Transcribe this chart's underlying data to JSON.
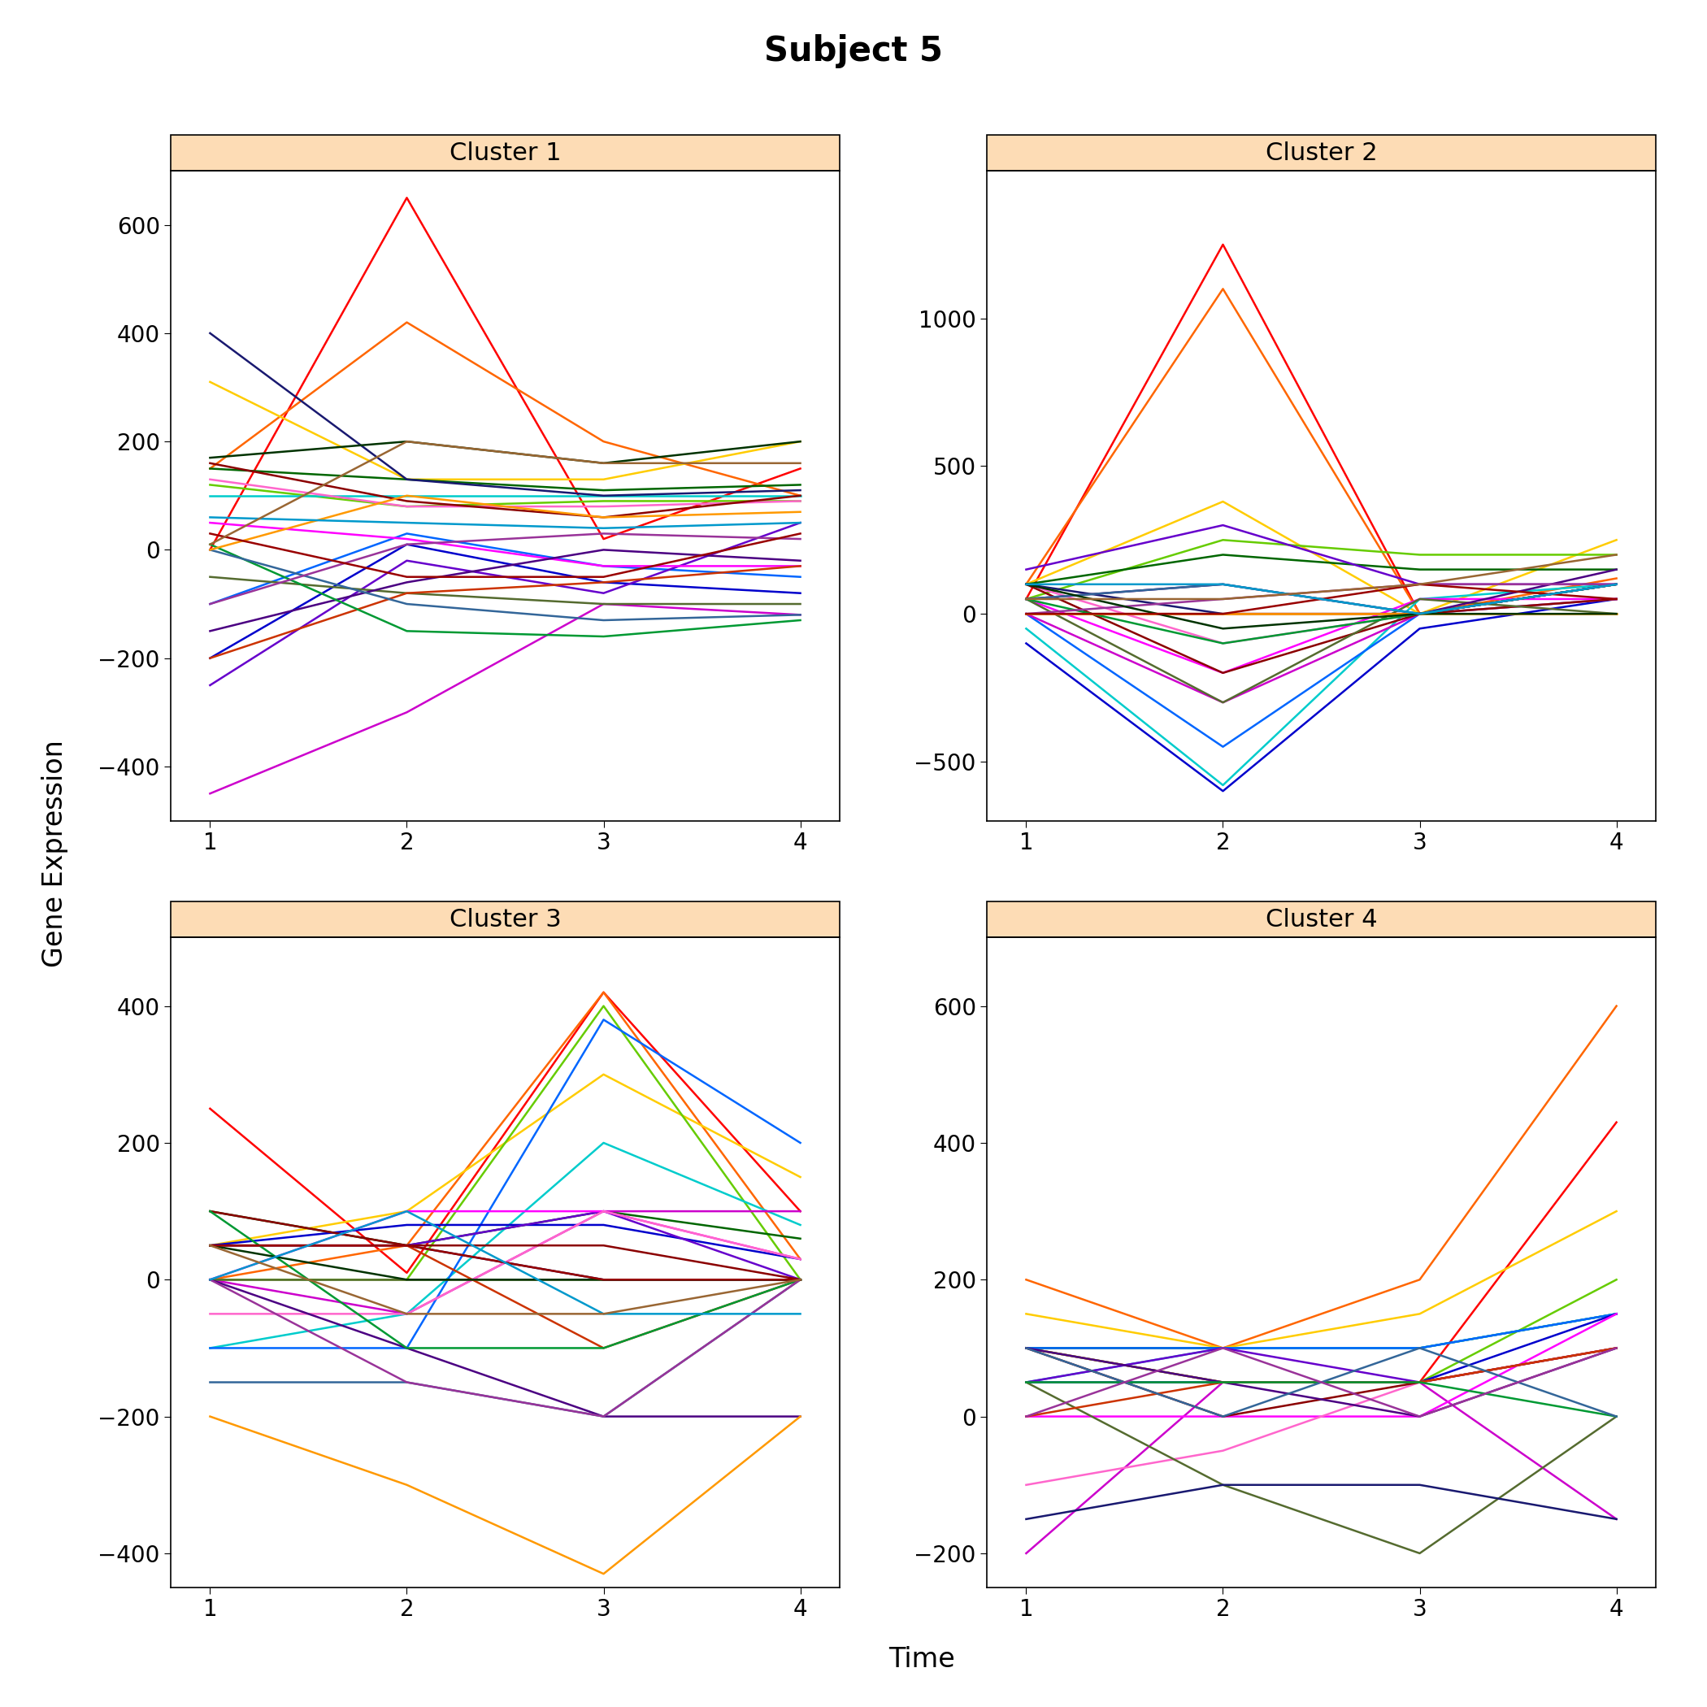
{
  "title": "Subject 5",
  "subplot_titles": [
    "Cluster 1",
    "Cluster 2",
    "Cluster 3",
    "Cluster 4"
  ],
  "xlabel": "Time",
  "ylabel": "Gene Expression",
  "header_color": "#FDDCB5",
  "background_color": "#FFFFFF",
  "ylims": {
    "0": [
      -500,
      700
    ],
    "1": [
      -700,
      1500
    ],
    "2": [
      -450,
      500
    ],
    "3": [
      -250,
      700
    ]
  },
  "yticks": {
    "0": [
      -400,
      -200,
      0,
      200,
      400,
      600
    ],
    "1": [
      -500,
      0,
      500,
      1000
    ],
    "2": [
      -400,
      -200,
      0,
      200,
      400
    ],
    "3": [
      -200,
      0,
      200,
      400,
      600
    ]
  },
  "cluster1_lines": [
    [
      0,
      650,
      20,
      150
    ],
    [
      150,
      420,
      200,
      100
    ],
    [
      310,
      130,
      130,
      200
    ],
    [
      120,
      80,
      90,
      90
    ],
    [
      150,
      130,
      110,
      120
    ],
    [
      100,
      100,
      100,
      100
    ],
    [
      -100,
      30,
      -30,
      -50
    ],
    [
      -200,
      10,
      -60,
      -80
    ],
    [
      -250,
      -20,
      -80,
      50
    ],
    [
      -450,
      -300,
      -100,
      -120
    ],
    [
      50,
      20,
      -30,
      -30
    ],
    [
      130,
      80,
      80,
      90
    ],
    [
      160,
      90,
      60,
      100
    ],
    [
      -50,
      -80,
      -100,
      -100
    ],
    [
      400,
      130,
      100,
      110
    ],
    [
      -150,
      -60,
      0,
      -20
    ],
    [
      -200,
      -80,
      -60,
      -30
    ],
    [
      10,
      -150,
      -160,
      -130
    ],
    [
      0,
      -100,
      -130,
      -120
    ],
    [
      -100,
      10,
      30,
      20
    ],
    [
      0,
      100,
      60,
      70
    ],
    [
      170,
      200,
      160,
      200
    ],
    [
      30,
      -50,
      -50,
      30
    ],
    [
      60,
      50,
      40,
      50
    ],
    [
      10,
      200,
      160,
      160
    ]
  ],
  "cluster2_lines": [
    [
      50,
      1250,
      0,
      100
    ],
    [
      100,
      1100,
      0,
      120
    ],
    [
      100,
      380,
      0,
      250
    ],
    [
      50,
      250,
      200,
      200
    ],
    [
      100,
      200,
      150,
      150
    ],
    [
      -50,
      -580,
      50,
      100
    ],
    [
      0,
      -450,
      0,
      50
    ],
    [
      -100,
      -600,
      -50,
      50
    ],
    [
      150,
      300,
      100,
      100
    ],
    [
      0,
      -300,
      0,
      100
    ],
    [
      50,
      -200,
      50,
      50
    ],
    [
      100,
      -100,
      0,
      50
    ],
    [
      100,
      -200,
      0,
      50
    ],
    [
      50,
      -300,
      50,
      0
    ],
    [
      100,
      0,
      0,
      100
    ],
    [
      50,
      100,
      0,
      150
    ],
    [
      0,
      0,
      0,
      100
    ],
    [
      50,
      -100,
      0,
      100
    ],
    [
      50,
      100,
      0,
      100
    ],
    [
      0,
      50,
      100,
      100
    ],
    [
      0,
      0,
      0,
      0
    ],
    [
      100,
      -50,
      0,
      0
    ],
    [
      0,
      0,
      100,
      50
    ],
    [
      100,
      100,
      0,
      100
    ],
    [
      50,
      50,
      100,
      200
    ]
  ],
  "cluster3_lines": [
    [
      250,
      10,
      420,
      100
    ],
    [
      0,
      50,
      420,
      30
    ],
    [
      50,
      100,
      300,
      150
    ],
    [
      0,
      0,
      400,
      0
    ],
    [
      100,
      50,
      100,
      60
    ],
    [
      -100,
      -50,
      200,
      80
    ],
    [
      -100,
      -100,
      380,
      200
    ],
    [
      50,
      80,
      80,
      30
    ],
    [
      50,
      50,
      100,
      0
    ],
    [
      0,
      -50,
      100,
      100
    ],
    [
      0,
      100,
      100,
      30
    ],
    [
      -50,
      -50,
      100,
      30
    ],
    [
      100,
      50,
      50,
      0
    ],
    [
      0,
      0,
      0,
      0
    ],
    [
      50,
      50,
      0,
      0
    ],
    [
      0,
      -100,
      -200,
      -200
    ],
    [
      50,
      50,
      -100,
      0
    ],
    [
      100,
      -100,
      -100,
      0
    ],
    [
      -150,
      -150,
      -200,
      0
    ],
    [
      0,
      -150,
      -200,
      0
    ],
    [
      -200,
      -300,
      -430,
      -200
    ],
    [
      50,
      0,
      0,
      0
    ],
    [
      50,
      50,
      0,
      0
    ],
    [
      0,
      100,
      -50,
      -50
    ],
    [
      50,
      -50,
      -50,
      0
    ]
  ],
  "cluster4_lines": [
    [
      100,
      50,
      50,
      430
    ],
    [
      200,
      100,
      200,
      600
    ],
    [
      150,
      100,
      150,
      300
    ],
    [
      100,
      50,
      50,
      200
    ],
    [
      100,
      100,
      100,
      150
    ],
    [
      50,
      100,
      100,
      150
    ],
    [
      100,
      100,
      100,
      150
    ],
    [
      50,
      50,
      50,
      150
    ],
    [
      50,
      100,
      50,
      100
    ],
    [
      -200,
      50,
      50,
      -150
    ],
    [
      0,
      0,
      0,
      150
    ],
    [
      -100,
      -50,
      50,
      100
    ],
    [
      100,
      0,
      50,
      100
    ],
    [
      50,
      -100,
      -200,
      0
    ],
    [
      -150,
      -100,
      -100,
      -150
    ],
    [
      100,
      50,
      0,
      100
    ],
    [
      0,
      50,
      50,
      100
    ],
    [
      50,
      50,
      50,
      0
    ],
    [
      100,
      0,
      100,
      0
    ],
    [
      0,
      100,
      0,
      100
    ]
  ],
  "r_colors": [
    "#FF0000",
    "#FF6600",
    "#FFCC00",
    "#66CC00",
    "#006600",
    "#00CCCC",
    "#0066FF",
    "#0000CC",
    "#6600CC",
    "#CC00CC",
    "#FF00FF",
    "#FF66CC",
    "#8B0000",
    "#556B2F",
    "#191970",
    "#4B0082",
    "#CC3300",
    "#009933",
    "#336699",
    "#993399",
    "#FF9900",
    "#003300",
    "#990000",
    "#0099CC",
    "#996633"
  ]
}
